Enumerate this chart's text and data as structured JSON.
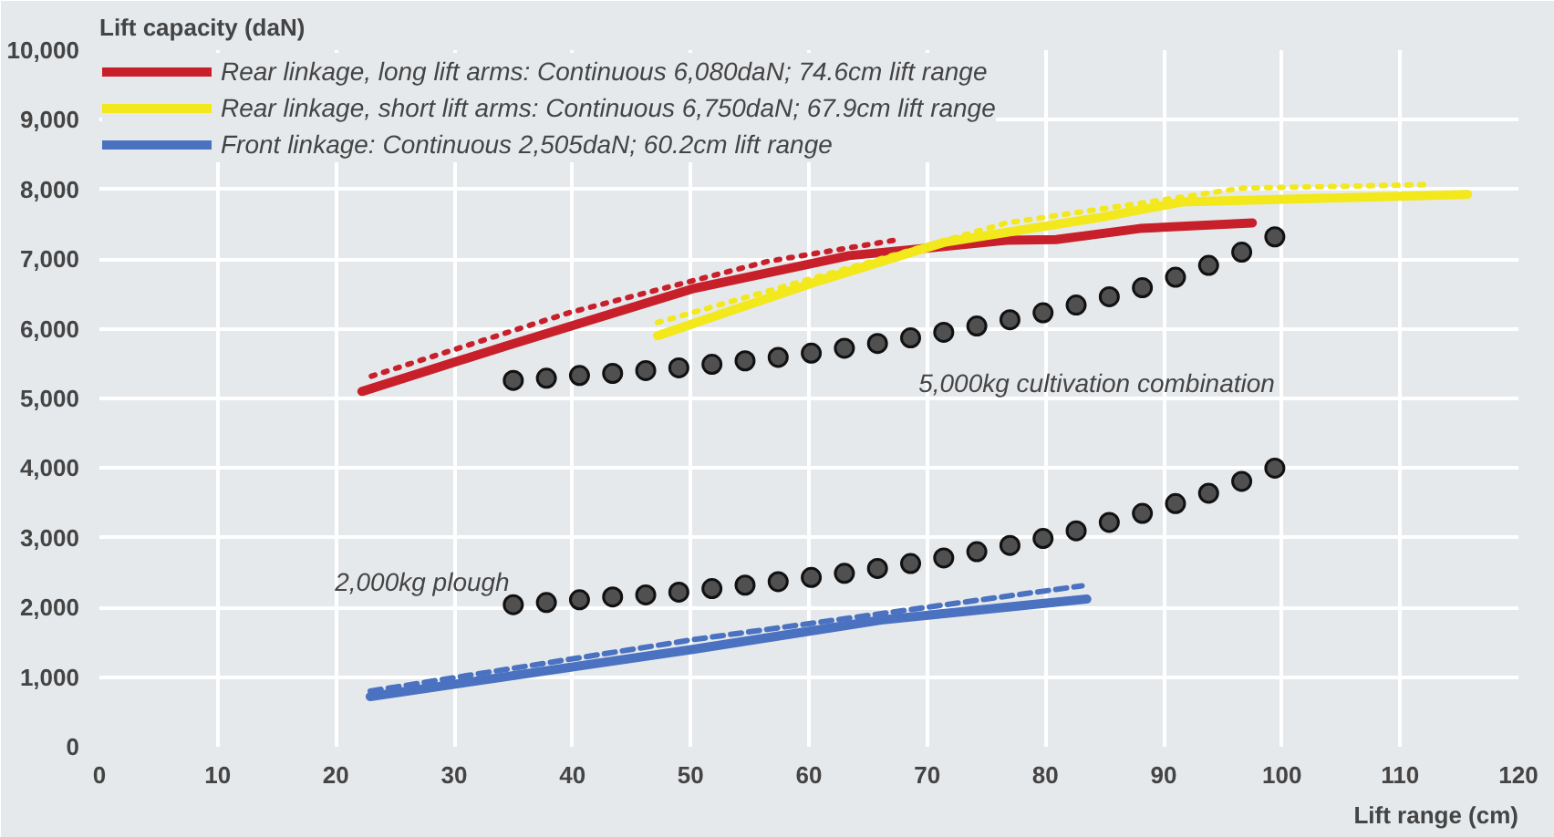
{
  "chart_data": {
    "type": "line",
    "xlabel": "Lift range (cm)",
    "ylabel": "Lift capacity (daN)",
    "xlim": [
      0,
      120
    ],
    "ylim": [
      0,
      10000
    ],
    "xticks": [
      0,
      10,
      20,
      30,
      40,
      50,
      60,
      70,
      80,
      90,
      100,
      110,
      120
    ],
    "yticks": [
      {
        "value": 0,
        "label": "0"
      },
      {
        "value": 1000,
        "label": "1,000"
      },
      {
        "value": 2000,
        "label": "2,000"
      },
      {
        "value": 3000,
        "label": "3,000"
      },
      {
        "value": 4000,
        "label": "4,000"
      },
      {
        "value": 5000,
        "label": "5,000"
      },
      {
        "value": 6000,
        "label": "6,000"
      },
      {
        "value": 7000,
        "label": "7,000"
      },
      {
        "value": 8000,
        "label": "8,000"
      },
      {
        "value": 9000,
        "label": "9,000"
      },
      {
        "value": 10000,
        "label": "10,000"
      }
    ],
    "grid": true,
    "legend": "top left",
    "line_style": "solid",
    "marker": "none",
    "series": [
      {
        "name": "Rear linkage, long lift arms: Continuous 6,080daN; 74.6cm lift range",
        "color": "#c8202a",
        "x": [
          22.2,
          34.5,
          50.3,
          63.4,
          76.7,
          80.9,
          88,
          97.5
        ],
        "values": [
          5100,
          5760,
          6580,
          7050,
          7270,
          7280,
          7440,
          7520
        ]
      },
      {
        "name": "Rear linkage, short lift arms: Continuous 6,750daN; 67.9cm lift range",
        "color": "#f2e81c",
        "x": [
          47.2,
          60.9,
          71.4,
          84.7,
          91.5,
          115.7
        ],
        "values": [
          5900,
          6690,
          7240,
          7600,
          7820,
          7930
        ]
      },
      {
        "name": "Front linkage: Continuous 2,505daN; 60.2cm lift range",
        "color": "#4a72c0",
        "x": [
          22.9,
          50.3,
          66.1,
          83.5
        ],
        "values": [
          720,
          1400,
          1820,
          2120
        ]
      },
      {
        "color": "#c8202a",
        "line_style": "dotted",
        "x": [
          23,
          39.7,
          56.6,
          67.2
        ],
        "values": [
          5320,
          6230,
          6970,
          7270
        ]
      },
      {
        "color": "#f2e81c",
        "line_style": "dotted",
        "x": [
          47.2,
          76.7,
          96.7,
          112.5
        ],
        "values": [
          6090,
          7520,
          8020,
          8070
        ]
      },
      {
        "color": "#4a72c0",
        "line_style": "dashed",
        "x": [
          22.9,
          50.3,
          83.1
        ],
        "values": [
          800,
          1540,
          2310
        ]
      },
      {
        "type": "scatter",
        "name": "2,000kg plough",
        "marker": "circle",
        "color": "#505050",
        "x": [
          35,
          37.8,
          40.6,
          43.4,
          46.2,
          49,
          51.8,
          54.6,
          57.4,
          60.2,
          63,
          65.8,
          68.6,
          71.4,
          74.2,
          77,
          79.8,
          82.6,
          85.4,
          88.2,
          91,
          93.8,
          96.6,
          99.4
        ],
        "values": [
          2040,
          2070,
          2110,
          2150,
          2180,
          2220,
          2270,
          2320,
          2370,
          2430,
          2490,
          2560,
          2630,
          2710,
          2800,
          2890,
          2990,
          3100,
          3220,
          3350,
          3490,
          3640,
          3810,
          4000
        ]
      },
      {
        "type": "scatter",
        "name": "5,000kg cultivation combination",
        "marker": "circle",
        "color": "#505050",
        "x": [
          35,
          37.8,
          40.6,
          43.4,
          46.2,
          49,
          51.8,
          54.6,
          57.4,
          60.2,
          63,
          65.8,
          68.6,
          71.4,
          74.2,
          77,
          79.8,
          82.6,
          85.4,
          88.2,
          91,
          93.8,
          96.6,
          99.4
        ],
        "values": [
          5260,
          5290,
          5330,
          5360,
          5400,
          5440,
          5490,
          5540,
          5590,
          5650,
          5720,
          5790,
          5870,
          5950,
          6040,
          6130,
          6230,
          6340,
          6460,
          6590,
          6740,
          6910,
          7100,
          7320
        ]
      }
    ]
  }
}
